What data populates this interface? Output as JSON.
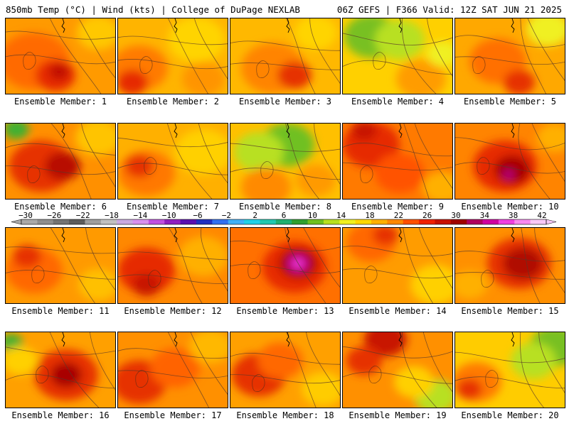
{
  "header": {
    "left": "850mb Temp (°C) | Wind (kts) | College of DuPage NEXLAB",
    "right": "06Z GEFS | F366 Valid: 12Z SAT JUN 21 2025"
  },
  "colorbar": {
    "labels": [
      "−30",
      "−26",
      "−22",
      "−18",
      "−14",
      "−10",
      "−6",
      "−2",
      "2",
      "6",
      "10",
      "14",
      "18",
      "22",
      "26",
      "30",
      "34",
      "38",
      "42"
    ],
    "colors": [
      "#a9a9a9",
      "#8e8e8e",
      "#737373",
      "#5c5c5c",
      "#9e9e9e",
      "#c0c0c0",
      "#c9a9e0",
      "#d890ee",
      "#c050e0",
      "#9020c0",
      "#5a10b0",
      "#2030c0",
      "#3070f0",
      "#40b0f8",
      "#20d0e8",
      "#20c8b0",
      "#20b070",
      "#30a030",
      "#70c020",
      "#b8e020",
      "#f0f020",
      "#ffd800",
      "#ffb000",
      "#ff8800",
      "#ff5000",
      "#f02000",
      "#c81000",
      "#a00000",
      "#b00060",
      "#d000a0",
      "#f040e0",
      "#f888f0",
      "#f8c8f8"
    ]
  },
  "panels": [
    {
      "label": "Ensemble Member: 1",
      "base": "#ff9a00",
      "blobs": [
        {
          "c": "#ff6a00",
          "x": 40,
          "y": 60,
          "r": 50
        },
        {
          "c": "#e62a00",
          "x": 70,
          "y": 80,
          "r": 28
        },
        {
          "c": "#c01000",
          "x": 75,
          "y": 75,
          "r": 14
        },
        {
          "c": "#ffc800",
          "x": 130,
          "y": 20,
          "r": 30
        }
      ]
    },
    {
      "label": "Ensemble Member: 2",
      "base": "#ffb400",
      "blobs": [
        {
          "c": "#ff7a00",
          "x": 30,
          "y": 70,
          "r": 40
        },
        {
          "c": "#e62a00",
          "x": 20,
          "y": 90,
          "r": 22
        },
        {
          "c": "#ffd400",
          "x": 110,
          "y": 30,
          "r": 40
        },
        {
          "c": "#ff9400",
          "x": 120,
          "y": 85,
          "r": 30
        }
      ]
    },
    {
      "label": "Ensemble Member: 3",
      "base": "#ffb800",
      "blobs": [
        {
          "c": "#ff8400",
          "x": 60,
          "y": 70,
          "r": 45
        },
        {
          "c": "#e63000",
          "x": 90,
          "y": 80,
          "r": 24
        },
        {
          "c": "#ffd400",
          "x": 120,
          "y": 20,
          "r": 30
        }
      ]
    },
    {
      "label": "Ensemble Member: 4",
      "base": "#ffd000",
      "blobs": [
        {
          "c": "#78c020",
          "x": 40,
          "y": 25,
          "r": 38
        },
        {
          "c": "#b8e020",
          "x": 80,
          "y": 30,
          "r": 35
        },
        {
          "c": "#ff9c00",
          "x": 110,
          "y": 85,
          "r": 35
        },
        {
          "c": "#f0f020",
          "x": 140,
          "y": 50,
          "r": 22
        }
      ]
    },
    {
      "label": "Ensemble Member: 5",
      "base": "#ffa800",
      "blobs": [
        {
          "c": "#f0f020",
          "x": 130,
          "y": 15,
          "r": 30
        },
        {
          "c": "#ff7000",
          "x": 60,
          "y": 60,
          "r": 40
        },
        {
          "c": "#e63000",
          "x": 90,
          "y": 90,
          "r": 22
        }
      ]
    },
    {
      "label": "Ensemble Member: 6",
      "base": "#ff9000",
      "blobs": [
        {
          "c": "#40b030",
          "x": 15,
          "y": 8,
          "r": 18
        },
        {
          "c": "#e63000",
          "x": 50,
          "y": 60,
          "r": 45
        },
        {
          "c": "#b81000",
          "x": 80,
          "y": 60,
          "r": 25
        },
        {
          "c": "#ffc400",
          "x": 130,
          "y": 20,
          "r": 32
        }
      ]
    },
    {
      "label": "Ensemble Member: 7",
      "base": "#ffb000",
      "blobs": [
        {
          "c": "#ff7800",
          "x": 40,
          "y": 70,
          "r": 40
        },
        {
          "c": "#e63000",
          "x": 30,
          "y": 60,
          "r": 20
        },
        {
          "c": "#ffd000",
          "x": 120,
          "y": 40,
          "r": 40
        }
      ]
    },
    {
      "label": "Ensemble Member: 8",
      "base": "#ffc000",
      "blobs": [
        {
          "c": "#70c020",
          "x": 80,
          "y": 30,
          "r": 38
        },
        {
          "c": "#b8e020",
          "x": 40,
          "y": 40,
          "r": 35
        },
        {
          "c": "#ff8a00",
          "x": 50,
          "y": 90,
          "r": 35
        },
        {
          "c": "#ff9a00",
          "x": 120,
          "y": 80,
          "r": 28
        }
      ]
    },
    {
      "label": "Ensemble Member: 9",
      "base": "#ff7a00",
      "blobs": [
        {
          "c": "#e62a00",
          "x": 40,
          "y": 30,
          "r": 40
        },
        {
          "c": "#c81400",
          "x": 30,
          "y": 10,
          "r": 18
        },
        {
          "c": "#ff5200",
          "x": 80,
          "y": 70,
          "r": 35
        },
        {
          "c": "#ffb000",
          "x": 140,
          "y": 90,
          "r": 28
        }
      ]
    },
    {
      "label": "Ensemble Member: 10",
      "base": "#ff8400",
      "blobs": [
        {
          "c": "#e62a00",
          "x": 70,
          "y": 60,
          "r": 45
        },
        {
          "c": "#a80000",
          "x": 80,
          "y": 65,
          "r": 25
        },
        {
          "c": "#c000a0",
          "x": 75,
          "y": 72,
          "r": 6
        },
        {
          "c": "#ffb000",
          "x": 140,
          "y": 20,
          "r": 25
        }
      ]
    },
    {
      "label": "Ensemble Member: 11",
      "base": "#ff9a00",
      "blobs": [
        {
          "c": "#ff6800",
          "x": 40,
          "y": 60,
          "r": 40
        },
        {
          "c": "#e63000",
          "x": 30,
          "y": 40,
          "r": 20
        },
        {
          "c": "#ffc000",
          "x": 130,
          "y": 80,
          "r": 28
        }
      ]
    },
    {
      "label": "Ensemble Member: 12",
      "base": "#ff8800",
      "blobs": [
        {
          "c": "#e62a00",
          "x": 40,
          "y": 60,
          "r": 40
        },
        {
          "c": "#c81400",
          "x": 40,
          "y": 80,
          "r": 20
        },
        {
          "c": "#ffb000",
          "x": 120,
          "y": 40,
          "r": 35
        }
      ]
    },
    {
      "label": "Ensemble Member: 13",
      "base": "#ff7000",
      "blobs": [
        {
          "c": "#e62a00",
          "x": 90,
          "y": 55,
          "r": 45
        },
        {
          "c": "#a80000",
          "x": 95,
          "y": 50,
          "r": 26
        },
        {
          "c": "#d000a0",
          "x": 95,
          "y": 50,
          "r": 14
        },
        {
          "c": "#f040e0",
          "x": 95,
          "y": 50,
          "r": 7
        }
      ]
    },
    {
      "label": "Ensemble Member: 14",
      "base": "#ff9c00",
      "blobs": [
        {
          "c": "#ff6800",
          "x": 40,
          "y": 20,
          "r": 35
        },
        {
          "c": "#e63000",
          "x": 60,
          "y": 10,
          "r": 18
        },
        {
          "c": "#ffd000",
          "x": 130,
          "y": 80,
          "r": 35
        }
      ]
    },
    {
      "label": "Ensemble Member: 15",
      "base": "#ff9000",
      "blobs": [
        {
          "c": "#e63000",
          "x": 90,
          "y": 50,
          "r": 45
        },
        {
          "c": "#b01000",
          "x": 95,
          "y": 50,
          "r": 28
        },
        {
          "c": "#ffb000",
          "x": 20,
          "y": 80,
          "r": 25
        }
      ]
    },
    {
      "label": "Ensemble Member: 16",
      "base": "#ffa000",
      "blobs": [
        {
          "c": "#40b030",
          "x": 8,
          "y": 15,
          "r": 16
        },
        {
          "c": "#e63000",
          "x": 85,
          "y": 60,
          "r": 45
        },
        {
          "c": "#a80000",
          "x": 85,
          "y": 60,
          "r": 22
        },
        {
          "c": "#ffd000",
          "x": 20,
          "y": 40,
          "r": 25
        }
      ]
    },
    {
      "label": "Ensemble Member: 17",
      "base": "#ff9000",
      "blobs": [
        {
          "c": "#e63000",
          "x": 30,
          "y": 70,
          "r": 38
        },
        {
          "c": "#ff6400",
          "x": 80,
          "y": 50,
          "r": 35
        },
        {
          "c": "#ffb800",
          "x": 130,
          "y": 20,
          "r": 30
        }
      ]
    },
    {
      "label": "Ensemble Member: 18",
      "base": "#ffa000",
      "blobs": [
        {
          "c": "#e63000",
          "x": 40,
          "y": 60,
          "r": 38
        },
        {
          "c": "#ff6800",
          "x": 70,
          "y": 40,
          "r": 32
        },
        {
          "c": "#ffcc00",
          "x": 130,
          "y": 80,
          "r": 30
        }
      ]
    },
    {
      "label": "Ensemble Member: 19",
      "base": "#ff9000",
      "blobs": [
        {
          "c": "#c81400",
          "x": 60,
          "y": 10,
          "r": 30
        },
        {
          "c": "#e63000",
          "x": 30,
          "y": 40,
          "r": 25
        },
        {
          "c": "#b8e020",
          "x": 130,
          "y": 90,
          "r": 30
        },
        {
          "c": "#ffd000",
          "x": 100,
          "y": 70,
          "r": 28
        }
      ]
    },
    {
      "label": "Ensemble Member: 20",
      "base": "#ffcc00",
      "blobs": [
        {
          "c": "#78c020",
          "x": 140,
          "y": 20,
          "r": 35
        },
        {
          "c": "#b8e020",
          "x": 110,
          "y": 40,
          "r": 32
        },
        {
          "c": "#ff7a00",
          "x": 30,
          "y": 70,
          "r": 35
        },
        {
          "c": "#e63000",
          "x": 20,
          "y": 80,
          "r": 18
        }
      ]
    }
  ]
}
